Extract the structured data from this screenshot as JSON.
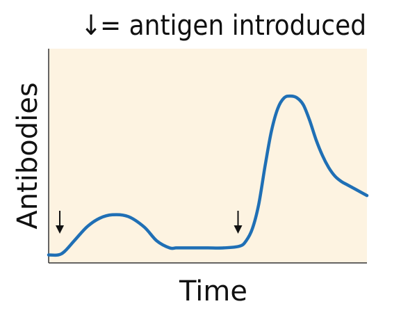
{
  "chart_data": {
    "type": "line",
    "title": "",
    "legend": {
      "symbol": "↓",
      "label": "= antigen introduced"
    },
    "xlabel": "Time",
    "ylabel": "Antibodies",
    "xlim": [
      0,
      100
    ],
    "ylim": [
      0,
      100
    ],
    "grid": false,
    "series": [
      {
        "color": "#1f6fb5",
        "x": [
          0,
          3,
          5,
          8,
          12,
          16,
          20,
          25,
          30,
          34,
          38,
          40,
          42,
          46,
          50,
          55,
          60,
          62,
          64,
          66,
          68,
          70,
          72,
          74,
          76,
          78,
          80,
          82,
          84,
          86,
          88,
          90,
          92,
          94,
          97,
          100
        ],
        "y": [
          1,
          1,
          3,
          9,
          17,
          22,
          24,
          23,
          17,
          9,
          5,
          5,
          5,
          5,
          5,
          5,
          6,
          9,
          16,
          30,
          52,
          72,
          85,
          91,
          92,
          91,
          87,
          78,
          67,
          58,
          51,
          46,
          43,
          41,
          38,
          35
        ]
      }
    ],
    "markers": [
      {
        "type": "arrow-down",
        "x": 3.5,
        "label": ""
      },
      {
        "type": "arrow-down",
        "x": 59.5,
        "label": ""
      }
    ],
    "background": "#fdf3e1",
    "axis_color": "#333333"
  }
}
